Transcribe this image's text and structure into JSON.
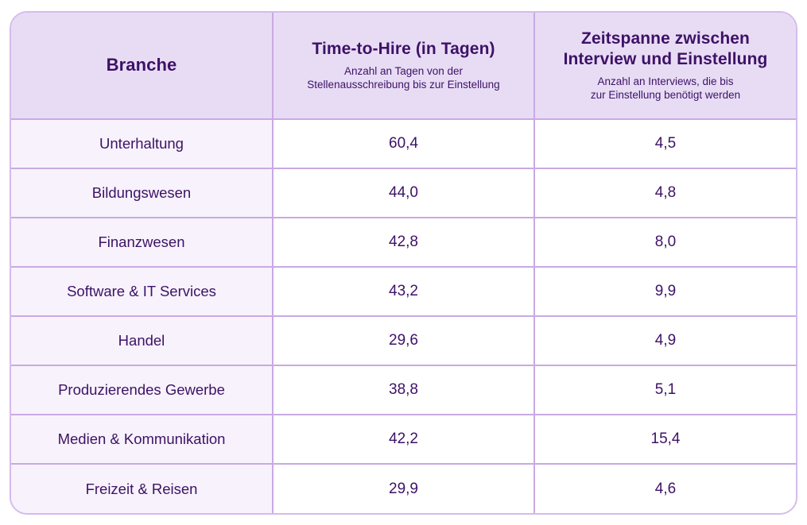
{
  "table": {
    "columns": [
      {
        "title": "Branche",
        "subtitle": ""
      },
      {
        "title": "Time-to-Hire (in Tagen)",
        "subtitle": "Anzahl an Tagen von der\nStellenausschreibung bis zur Einstellung"
      },
      {
        "title": "Zeitspanne zwischen\nInterview und Einstellung",
        "subtitle": "Anzahl an Interviews, die bis\nzur Einstellung benötigt werden"
      }
    ],
    "rows": [
      {
        "branche": "Unterhaltung",
        "time_to_hire": "60,4",
        "interviews": "4,5"
      },
      {
        "branche": "Bildungswesen",
        "time_to_hire": "44,0",
        "interviews": "4,8"
      },
      {
        "branche": "Finanzwesen",
        "time_to_hire": "42,8",
        "interviews": "8,0"
      },
      {
        "branche": "Software & IT Services",
        "time_to_hire": "43,2",
        "interviews": "9,9"
      },
      {
        "branche": "Handel",
        "time_to_hire": "29,6",
        "interviews": "4,9"
      },
      {
        "branche": "Produzierendes Gewerbe",
        "time_to_hire": "38,8",
        "interviews": "5,1"
      },
      {
        "branche": "Medien & Kommunikation",
        "time_to_hire": "42,2",
        "interviews": "15,4"
      },
      {
        "branche": "Freizeit & Reisen",
        "time_to_hire": "29,9",
        "interviews": "4,6"
      }
    ]
  },
  "colors": {
    "header_bg": "#E8DCF5",
    "row_label_bg": "#F7F2FB",
    "cell_bg": "#FFFFFF",
    "border": "#C9A9E3",
    "outer_border": "#D4BCEB",
    "text": "#3D1266"
  },
  "chart_data": {
    "type": "table",
    "title": "",
    "columns": [
      "Branche",
      "Time-to-Hire (in Tagen)",
      "Zeitspanne zwischen Interview und Einstellung"
    ],
    "column_subtitles": [
      "",
      "Anzahl an Tagen von der Stellenausschreibung bis zur Einstellung",
      "Anzahl an Interviews, die bis zur Einstellung benötigt werden"
    ],
    "categories": [
      "Unterhaltung",
      "Bildungswesen",
      "Finanzwesen",
      "Software & IT Services",
      "Handel",
      "Produzierendes Gewerbe",
      "Medien & Kommunikation",
      "Freizeit & Reisen"
    ],
    "series": [
      {
        "name": "Time-to-Hire (in Tagen)",
        "values": [
          60.4,
          44.0,
          42.8,
          43.2,
          29.6,
          38.8,
          42.2,
          29.9
        ]
      },
      {
        "name": "Zeitspanne zwischen Interview und Einstellung",
        "values": [
          4.5,
          4.8,
          8.0,
          9.9,
          4.9,
          5.1,
          15.4,
          4.6
        ]
      }
    ]
  }
}
